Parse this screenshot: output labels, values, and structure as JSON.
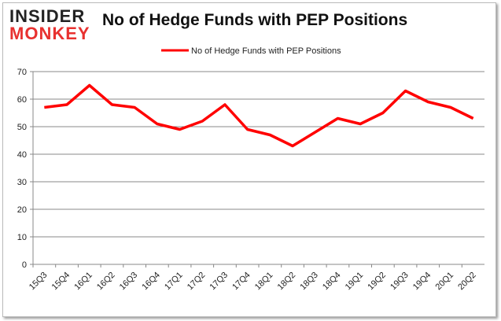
{
  "logo": {
    "line1": "INSIDER",
    "line2": "MONKEY"
  },
  "chart_data": {
    "type": "line",
    "title": "No of Hedge Funds with PEP Positions",
    "legend": "No of Hedge Funds with PEP Positions",
    "legend_position": "top",
    "categories": [
      "15Q3",
      "15Q4",
      "16Q1",
      "16Q2",
      "16Q3",
      "16Q4",
      "17Q1",
      "17Q2",
      "17Q3",
      "17Q4",
      "18Q1",
      "18Q2",
      "18Q3",
      "18Q4",
      "19Q1",
      "19Q2",
      "19Q3",
      "19Q4",
      "20Q1",
      "20Q2"
    ],
    "series": [
      {
        "name": "No of Hedge Funds with PEP Positions",
        "color": "#ff0000",
        "values": [
          57,
          58,
          65,
          58,
          57,
          51,
          49,
          52,
          58,
          49,
          47,
          43,
          48,
          53,
          51,
          55,
          63,
          59,
          57,
          53
        ]
      }
    ],
    "ylim": [
      0,
      70
    ],
    "yticks": [
      0,
      10,
      20,
      30,
      40,
      50,
      60,
      70
    ],
    "grid": true
  }
}
